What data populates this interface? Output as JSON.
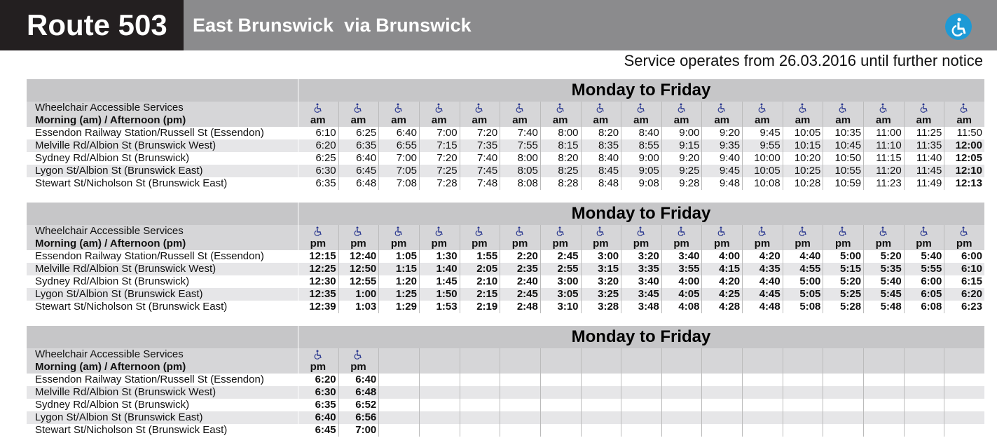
{
  "header": {
    "route": "Route 503",
    "destination": "East Brunswick",
    "via": "via Brunswick"
  },
  "notice": "Service operates from 26.03.2016 until further notice",
  "tables": [
    {
      "title": "Monday to Friday",
      "accessible_label": "Wheelchair Accessible Services",
      "period_label": "Morning (am) / Afternoon (pm)",
      "periods": [
        "am",
        "am",
        "am",
        "am",
        "am",
        "am",
        "am",
        "am",
        "am",
        "am",
        "am",
        "am",
        "am",
        "am",
        "am",
        "am",
        "am"
      ],
      "stops": [
        {
          "name": "Essendon Railway Station/Russell St (Essendon)",
          "times": [
            "6:10",
            "6:25",
            "6:40",
            "7:00",
            "7:20",
            "7:40",
            "8:00",
            "8:20",
            "8:40",
            "9:00",
            "9:20",
            "9:45",
            "10:05",
            "10:35",
            "11:00",
            "11:25",
            "11:50"
          ]
        },
        {
          "name": "Melville Rd/Albion St (Brunswick West)",
          "times": [
            "6:20",
            "6:35",
            "6:55",
            "7:15",
            "7:35",
            "7:55",
            "8:15",
            "8:35",
            "8:55",
            "9:15",
            "9:35",
            "9:55",
            "10:15",
            "10:45",
            "11:10",
            "11:35",
            "12:00"
          ]
        },
        {
          "name": "Sydney Rd/Albion St (Brunswick)",
          "times": [
            "6:25",
            "6:40",
            "7:00",
            "7:20",
            "7:40",
            "8:00",
            "8:20",
            "8:40",
            "9:00",
            "9:20",
            "9:40",
            "10:00",
            "10:20",
            "10:50",
            "11:15",
            "11:40",
            "12:05"
          ]
        },
        {
          "name": "Lygon St/Albion St (Brunswick East)",
          "times": [
            "6:30",
            "6:45",
            "7:05",
            "7:25",
            "7:45",
            "8:05",
            "8:25",
            "8:45",
            "9:05",
            "9:25",
            "9:45",
            "10:05",
            "10:25",
            "10:55",
            "11:20",
            "11:45",
            "12:10"
          ]
        },
        {
          "name": "Stewart St/Nicholson St (Brunswick East)",
          "times": [
            "6:35",
            "6:48",
            "7:08",
            "7:28",
            "7:48",
            "8:08",
            "8:28",
            "8:48",
            "9:08",
            "9:28",
            "9:48",
            "10:08",
            "10:28",
            "10:59",
            "11:23",
            "11:49",
            "12:13"
          ]
        }
      ]
    },
    {
      "title": "Monday to Friday",
      "accessible_label": "Wheelchair Accessible Services",
      "period_label": "Morning (am) / Afternoon (pm)",
      "periods": [
        "pm",
        "pm",
        "pm",
        "pm",
        "pm",
        "pm",
        "pm",
        "pm",
        "pm",
        "pm",
        "pm",
        "pm",
        "pm",
        "pm",
        "pm",
        "pm",
        "pm"
      ],
      "stops": [
        {
          "name": "Essendon Railway Station/Russell St (Essendon)",
          "times": [
            "12:15",
            "12:40",
            "1:05",
            "1:30",
            "1:55",
            "2:20",
            "2:45",
            "3:00",
            "3:20",
            "3:40",
            "4:00",
            "4:20",
            "4:40",
            "5:00",
            "5:20",
            "5:40",
            "6:00"
          ]
        },
        {
          "name": "Melville Rd/Albion St (Brunswick West)",
          "times": [
            "12:25",
            "12:50",
            "1:15",
            "1:40",
            "2:05",
            "2:35",
            "2:55",
            "3:15",
            "3:35",
            "3:55",
            "4:15",
            "4:35",
            "4:55",
            "5:15",
            "5:35",
            "5:55",
            "6:10"
          ]
        },
        {
          "name": "Sydney Rd/Albion St (Brunswick)",
          "times": [
            "12:30",
            "12:55",
            "1:20",
            "1:45",
            "2:10",
            "2:40",
            "3:00",
            "3:20",
            "3:40",
            "4:00",
            "4:20",
            "4:40",
            "5:00",
            "5:20",
            "5:40",
            "6:00",
            "6:15"
          ]
        },
        {
          "name": "Lygon St/Albion St (Brunswick East)",
          "times": [
            "12:35",
            "1:00",
            "1:25",
            "1:50",
            "2:15",
            "2:45",
            "3:05",
            "3:25",
            "3:45",
            "4:05",
            "4:25",
            "4:45",
            "5:05",
            "5:25",
            "5:45",
            "6:05",
            "6:20"
          ]
        },
        {
          "name": "Stewart St/Nicholson St (Brunswick East)",
          "times": [
            "12:39",
            "1:03",
            "1:29",
            "1:53",
            "2:19",
            "2:48",
            "3:10",
            "3:28",
            "3:48",
            "4:08",
            "4:28",
            "4:48",
            "5:08",
            "5:28",
            "5:48",
            "6:08",
            "6:23"
          ]
        }
      ]
    },
    {
      "title": "Monday to Friday",
      "accessible_label": "Wheelchair Accessible Services",
      "period_label": "Morning (am) / Afternoon (pm)",
      "periods": [
        "pm",
        "pm"
      ],
      "stops": [
        {
          "name": "Essendon Railway Station/Russell St (Essendon)",
          "times": [
            "6:20",
            "6:40"
          ]
        },
        {
          "name": "Melville Rd/Albion St (Brunswick West)",
          "times": [
            "6:30",
            "6:48"
          ]
        },
        {
          "name": "Sydney Rd/Albion St (Brunswick)",
          "times": [
            "6:35",
            "6:52"
          ]
        },
        {
          "name": "Lygon St/Albion St (Brunswick East)",
          "times": [
            "6:40",
            "6:56"
          ]
        },
        {
          "name": "Stewart St/Nicholson St (Brunswick East)",
          "times": [
            "6:45",
            "7:00"
          ]
        }
      ]
    }
  ]
}
